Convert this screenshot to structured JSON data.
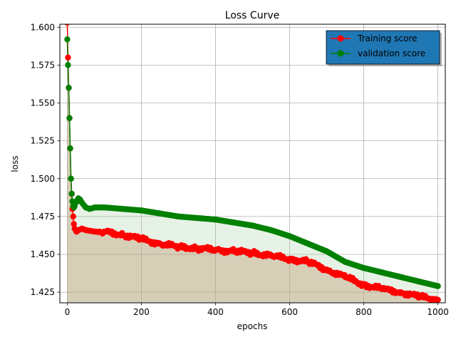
{
  "chart_data": {
    "type": "line",
    "title": "Loss Curve",
    "xlabel": "epochs",
    "ylabel": "loss",
    "xlim": [
      -20,
      1020
    ],
    "ylim": [
      1.418,
      1.602
    ],
    "xticks": [
      0,
      200,
      400,
      600,
      800,
      1000
    ],
    "yticks": [
      1.425,
      1.45,
      1.475,
      1.5,
      1.525,
      1.55,
      1.575,
      1.6
    ],
    "xtick_labels": [
      "0",
      "200",
      "400",
      "600",
      "800",
      "1000"
    ],
    "ytick_labels": [
      "1.425",
      "1.450",
      "1.475",
      "1.500",
      "1.525",
      "1.550",
      "1.575",
      "1.600"
    ],
    "grid": true,
    "legend_position": "top-right",
    "series": [
      {
        "name": "Training score",
        "color": "#ff0000",
        "fill": "#c4a27f",
        "x": [
          0,
          2,
          4,
          6,
          8,
          10,
          12,
          14,
          16,
          18,
          20,
          25,
          30,
          40,
          50,
          75,
          100,
          150,
          200,
          250,
          300,
          350,
          400,
          450,
          500,
          550,
          600,
          650,
          700,
          750,
          800,
          850,
          900,
          950,
          1000
        ],
        "y": [
          1.603,
          1.58,
          1.56,
          1.54,
          1.52,
          1.5,
          1.49,
          1.48,
          1.475,
          1.47,
          1.467,
          1.465,
          1.466,
          1.467,
          1.466,
          1.465,
          1.465,
          1.463,
          1.46,
          1.457,
          1.455,
          1.454,
          1.453,
          1.452,
          1.451,
          1.449,
          1.447,
          1.445,
          1.44,
          1.435,
          1.43,
          1.427,
          1.425,
          1.422,
          1.42
        ]
      },
      {
        "name": "validation score",
        "color": "#008000",
        "fill": "#90c590",
        "x": [
          0,
          2,
          4,
          6,
          8,
          10,
          12,
          14,
          16,
          18,
          20,
          25,
          30,
          35,
          40,
          50,
          60,
          75,
          100,
          150,
          200,
          250,
          300,
          350,
          400,
          450,
          500,
          550,
          600,
          650,
          700,
          750,
          800,
          850,
          900,
          950,
          1000
        ],
        "y": [
          1.592,
          1.575,
          1.56,
          1.54,
          1.52,
          1.5,
          1.49,
          1.485,
          1.482,
          1.481,
          1.482,
          1.485,
          1.487,
          1.486,
          1.484,
          1.481,
          1.48,
          1.481,
          1.481,
          1.48,
          1.479,
          1.477,
          1.475,
          1.474,
          1.473,
          1.471,
          1.469,
          1.466,
          1.462,
          1.457,
          1.452,
          1.445,
          1.441,
          1.438,
          1.435,
          1.432,
          1.429
        ]
      }
    ]
  }
}
